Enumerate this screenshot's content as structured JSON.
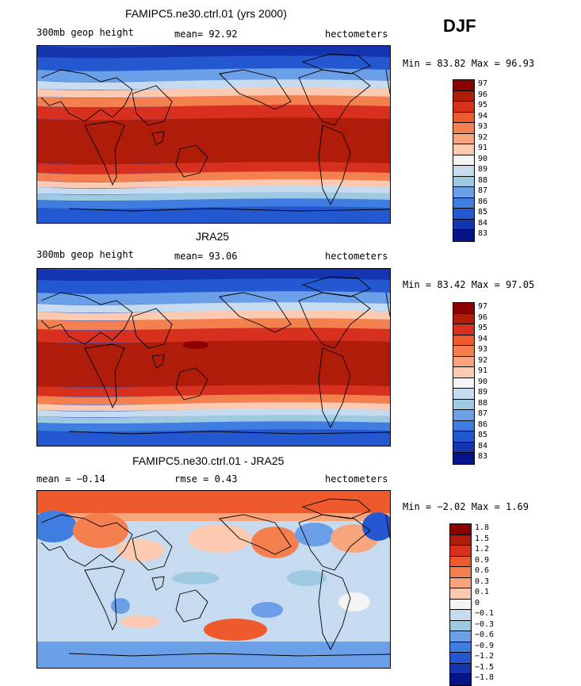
{
  "season": "DJF",
  "panels": [
    {
      "title": "FAMIPC5.ne30.ctrl.01 (yrs 2000)",
      "left": "300mb geop height",
      "mid": "mean=  92.92",
      "right": "hectometers",
      "minmax": "Min =  83.82 Max =  96.93",
      "map_kind": "abs",
      "colorbar": [
        "97",
        "96",
        "95",
        "94",
        "93",
        "92",
        "91",
        "90",
        "89",
        "88",
        "87",
        "86",
        "85",
        "84",
        "83"
      ],
      "colors": [
        "#8b0000",
        "#b01c0a",
        "#d7301f",
        "#ef5a2d",
        "#f4804f",
        "#f8a47c",
        "#fbcab0",
        "#f4f4f4",
        "#c6dbef",
        "#9ecae1",
        "#6b9fe8",
        "#3f7ee0",
        "#2358d0",
        "#1434b0",
        "#08138a"
      ]
    },
    {
      "title": "JRA25",
      "left": "300mb geop height",
      "mid": "mean=  93.06",
      "right": "hectometers",
      "minmax": "Min =  83.42 Max =  97.05",
      "map_kind": "abs2",
      "colorbar": [
        "97",
        "96",
        "95",
        "94",
        "93",
        "92",
        "91",
        "90",
        "89",
        "88",
        "87",
        "86",
        "85",
        "84",
        "83"
      ],
      "colors": [
        "#8b0000",
        "#b01c0a",
        "#d7301f",
        "#ef5a2d",
        "#f4804f",
        "#f8a47c",
        "#fbcab0",
        "#f4f4f4",
        "#c6dbef",
        "#9ecae1",
        "#6b9fe8",
        "#3f7ee0",
        "#2358d0",
        "#1434b0",
        "#08138a"
      ]
    },
    {
      "title": "FAMIPC5.ne30.ctrl.01 - JRA25",
      "left": "mean =  −0.14",
      "mid": "rmse =   0.43",
      "right": "hectometers",
      "minmax": "Min =  −2.02 Max =   1.69",
      "map_kind": "diff",
      "colorbar": [
        "1.8",
        "1.5",
        "1.2",
        "0.9",
        "0.6",
        "0.3",
        "0.1",
        "0",
        "−0.1",
        "−0.3",
        "−0.6",
        "−0.9",
        "−1.2",
        "−1.5",
        "−1.8"
      ],
      "colors": [
        "#8b0000",
        "#b01c0a",
        "#d7301f",
        "#ef5a2d",
        "#f4804f",
        "#f8a47c",
        "#fbcab0",
        "#f4f4f4",
        "#c6dbef",
        "#9ecae1",
        "#6b9fe8",
        "#3f7ee0",
        "#2358d0",
        "#1434b0",
        "#08138a"
      ]
    }
  ],
  "chart_data": [
    {
      "type": "heatmap",
      "title": "FAMIPC5.ne30.ctrl.01 (yrs 2000)",
      "field": "300mb geop height",
      "units": "hectometers",
      "mean": 92.92,
      "min": 83.82,
      "max": 96.93,
      "levels": [
        83,
        84,
        85,
        86,
        87,
        88,
        89,
        90,
        91,
        92,
        93,
        94,
        95,
        96,
        97
      ]
    },
    {
      "type": "heatmap",
      "title": "JRA25",
      "field": "300mb geop height",
      "units": "hectometers",
      "mean": 93.06,
      "min": 83.42,
      "max": 97.05,
      "levels": [
        83,
        84,
        85,
        86,
        87,
        88,
        89,
        90,
        91,
        92,
        93,
        94,
        95,
        96,
        97
      ]
    },
    {
      "type": "heatmap",
      "title": "FAMIPC5.ne30.ctrl.01 - JRA25",
      "units": "hectometers",
      "mean": -0.14,
      "rmse": 0.43,
      "min": -2.02,
      "max": 1.69,
      "levels": [
        -1.8,
        -1.5,
        -1.2,
        -0.9,
        -0.6,
        -0.3,
        -0.1,
        0,
        0.1,
        0.3,
        0.6,
        0.9,
        1.2,
        1.5,
        1.8
      ]
    }
  ]
}
